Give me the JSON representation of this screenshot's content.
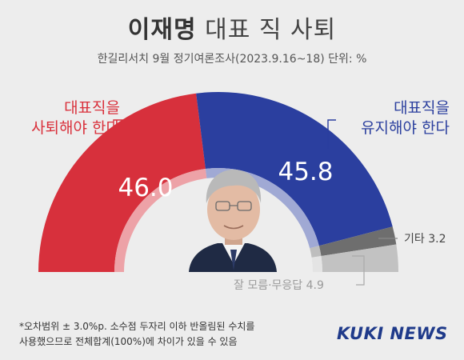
{
  "title_main": "이재명",
  "title_rest": "대표 직 사퇴",
  "subtitle": "한길리서치 9월 정기여론조사(2023.9.16~18) 단위: %",
  "chart_data": {
    "type": "pie",
    "variant": "half-donut",
    "categories": [
      "대표직을 사퇴해야 한다",
      "대표직을 유지해야 한다",
      "기타",
      "잘 모름·무응답"
    ],
    "values": [
      46.0,
      45.8,
      3.2,
      4.9
    ],
    "value_labels": [
      "46.0",
      "45.8",
      "3.2",
      "4.9"
    ],
    "colors": [
      "#d7303c",
      "#2b3f9f",
      "#6e6e6e",
      "#c2c2c2"
    ]
  },
  "labels": {
    "resign_line1": "대표직을",
    "resign_line2": "사퇴해야 한다",
    "keep_line1": "대표직을",
    "keep_line2": "유지해야 한다",
    "other": "기타",
    "dontknow": "잘 모름·무응답"
  },
  "footnote_line1": "*오차범위 ± 3.0%p. 소수점 두자리 이하 반올림된 수치를",
  "footnote_line2": "사용했으므로 전체합계(100%)에 차이가 있을 수 있음",
  "brand": "KUKI NEWS"
}
